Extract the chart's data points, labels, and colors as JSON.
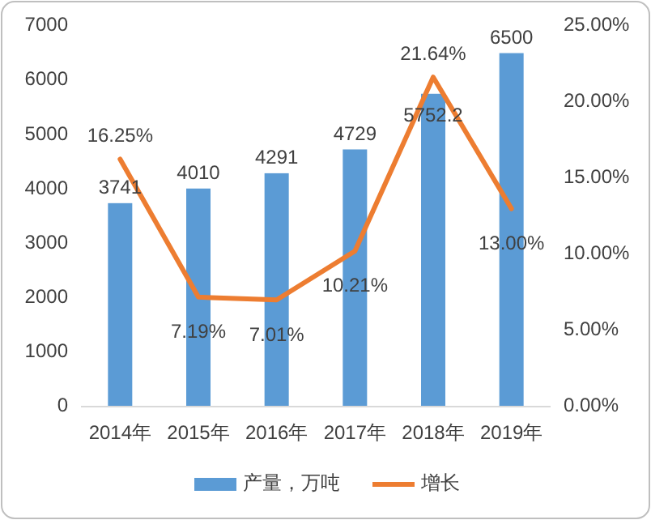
{
  "chart_data": {
    "type": "bar",
    "categories": [
      "2014年",
      "2015年",
      "2016年",
      "2017年",
      "2018年",
      "2019年"
    ],
    "series": [
      {
        "name": "产量，万吨",
        "color": "#5b9bd5",
        "values": [
          3741,
          4010,
          4291,
          4729,
          5752.2,
          6500
        ]
      },
      {
        "name": "增长",
        "type": "line",
        "axis": "y2",
        "color": "#ed7d31",
        "values": [
          16.25,
          7.19,
          7.01,
          10.21,
          21.64,
          13.0
        ],
        "value_labels": [
          "16.25%",
          "7.19%",
          "7.01%",
          "10.21%",
          "21.64%",
          "13.00%"
        ]
      }
    ],
    "ylim": [
      0,
      7000
    ],
    "yticks": [
      0,
      1000,
      2000,
      3000,
      4000,
      5000,
      6000,
      7000
    ],
    "y2lim": [
      0,
      25
    ],
    "y2ticks": [
      {
        "value": 0,
        "label": "0.00%"
      },
      {
        "value": 5,
        "label": "5.00%"
      },
      {
        "value": 10,
        "label": "10.00%"
      },
      {
        "value": 15,
        "label": "15.00%"
      },
      {
        "value": 20,
        "label": "20.00%"
      },
      {
        "value": 25,
        "label": "25.00%"
      }
    ],
    "data_labels": true,
    "grid": false,
    "legend": "bottom",
    "marker": "none",
    "line_style": "solid"
  }
}
